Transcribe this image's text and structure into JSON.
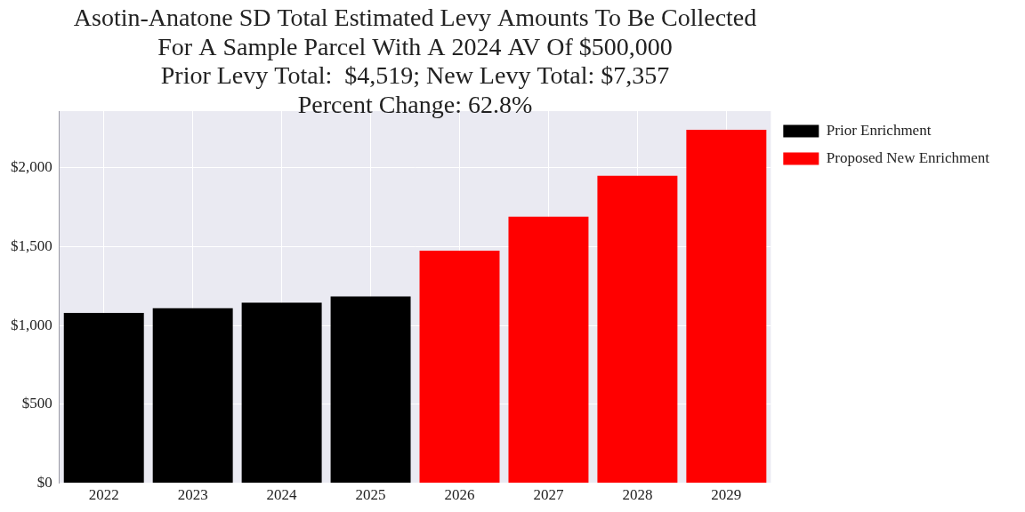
{
  "chart_data": {
    "type": "bar",
    "title": [
      "Asotin-Anatone SD Total Estimated Levy Amounts To Be Collected",
      "For A Sample Parcel With A 2024 AV Of $500,000",
      "Prior Levy Total:  $4,519; New Levy Total: $7,357",
      "Percent Change: 62.8%"
    ],
    "categories": [
      "2022",
      "2023",
      "2024",
      "2025",
      "2026",
      "2027",
      "2028",
      "2029"
    ],
    "series": [
      {
        "name": "Prior Enrichment",
        "color": "#000000",
        "values": [
          1080,
          1110,
          1145,
          1184,
          null,
          null,
          null,
          null
        ]
      },
      {
        "name": "Proposed New Enrichment",
        "color": "#ff0000",
        "values": [
          null,
          null,
          null,
          null,
          1475,
          1690,
          1950,
          2242
        ]
      }
    ],
    "ylim": [
      0,
      2360
    ],
    "yticks": [
      {
        "value": 0,
        "label": "$0"
      },
      {
        "value": 500,
        "label": "$500"
      },
      {
        "value": 1000,
        "label": "$1,000"
      },
      {
        "value": 1500,
        "label": "$1,500"
      },
      {
        "value": 2000,
        "label": "$2,000"
      }
    ],
    "grid": true,
    "legend": "right"
  }
}
